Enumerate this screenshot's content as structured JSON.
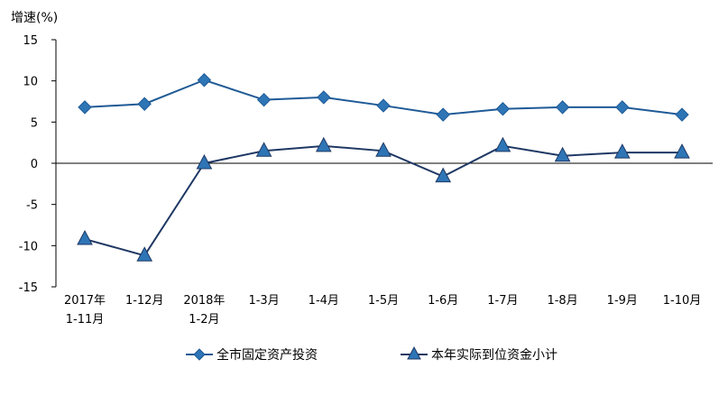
{
  "chart_data": {
    "type": "line",
    "ylabel": "增速(%)",
    "ylim": [
      -15,
      15
    ],
    "y_ticks": [
      15,
      10,
      5,
      0,
      -5,
      -10,
      -15
    ],
    "categories": [
      [
        "2017年",
        "1-11月"
      ],
      [
        "1-12月"
      ],
      [
        "2018年",
        "1-2月"
      ],
      [
        "1-3月"
      ],
      [
        "1-4月"
      ],
      [
        "1-5月"
      ],
      [
        "1-6月"
      ],
      [
        "1-7月"
      ],
      [
        "1-8月"
      ],
      [
        "1-9月"
      ],
      [
        "1-10月"
      ]
    ],
    "series": [
      {
        "name": "全市固定资产投资",
        "marker": "diamond",
        "color": "#1f5a96",
        "marker_color": "#2e75b6",
        "values": [
          6.8,
          7.2,
          10.1,
          7.7,
          8.0,
          7.0,
          5.9,
          6.6,
          6.8,
          6.8,
          5.9
        ]
      },
      {
        "name": "本年实际到位资金小计",
        "marker": "triangle",
        "color": "#1f3864",
        "marker_color": "#2e75b6",
        "values": [
          -9.2,
          -11.2,
          0.0,
          1.5,
          2.1,
          1.5,
          -1.6,
          2.1,
          0.9,
          1.3,
          1.3
        ]
      }
    ],
    "legend_position": "bottom",
    "grid": false
  }
}
